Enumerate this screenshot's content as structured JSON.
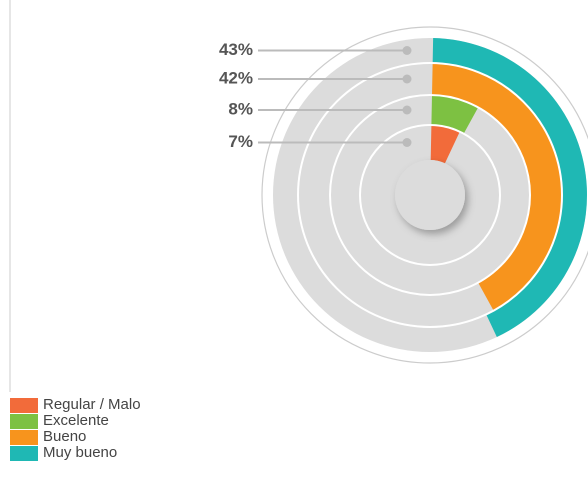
{
  "chart_data": {
    "type": "radial_bar",
    "categories": [
      "Regular / Malo",
      "Excelente",
      "Bueno",
      "Muy bueno"
    ],
    "values": [
      7,
      8,
      42,
      43
    ],
    "value_labels": [
      "7%",
      "8%",
      "42%",
      "43%"
    ],
    "colors": [
      "#f26b3a",
      "#7dc142",
      "#f7941d",
      "#1fb8b4"
    ],
    "ylim": [
      0,
      100
    ]
  }
}
